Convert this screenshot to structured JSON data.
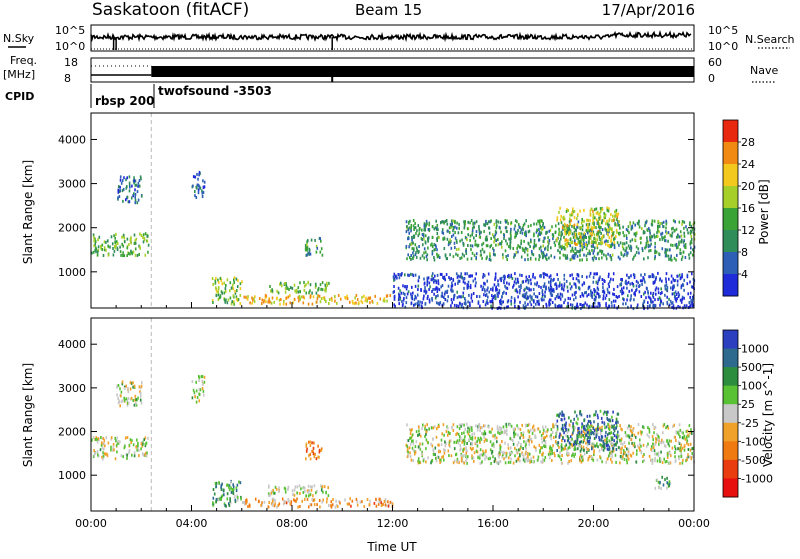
{
  "header": {
    "station": "Saskatoon (fitACF)",
    "beam": "Beam 15",
    "date": "17/Apr/2016"
  },
  "top_panels": {
    "nsky_label": "N.Sky",
    "nsky_ticks": [
      "10^5",
      "10^0"
    ],
    "nsearch_label": "N.Search",
    "nsearch_ticks": [
      "10^5",
      "10^0"
    ],
    "freq_label": "Freq.",
    "freq_unit": "[MHz]",
    "freq_ticks": [
      "18",
      "8"
    ],
    "nave_label": "Nave",
    "nave_ticks": [
      "60",
      "0"
    ],
    "cpid_label": "CPID",
    "cpid_segments": [
      "rbsp 200",
      "twofsound -3503"
    ]
  },
  "colors": {
    "power": [
      "#1f2bd8",
      "#2c5fb5",
      "#2f8d5a",
      "#3aa336",
      "#a6cf2a",
      "#f2c91c",
      "#f08a12",
      "#e8290f"
    ],
    "velocity": [
      "#2b3fbf",
      "#2d6a8e",
      "#2d8d3f",
      "#59c234",
      "#c8c8c8",
      "#f0a12a",
      "#f07a12",
      "#e93d0f",
      "#e8100f"
    ],
    "gap": "#cccccc"
  },
  "chart_data": [
    {
      "type": "heatmap",
      "panel": "power",
      "ylabel": "Slant Range [km]",
      "ylim": [
        180,
        4600
      ],
      "yticks": [
        "1000",
        "2000",
        "3000",
        "4000"
      ],
      "colorbar_label": "Power [dB]",
      "colorbar_ticks": [
        "4",
        "8",
        "12",
        "16",
        "20",
        "24",
        "28"
      ],
      "x": [
        "00:00",
        "04:00",
        "08:00",
        "12:00",
        "16:00",
        "20:00",
        "00:00"
      ],
      "scatter_regions": [
        {
          "t0": 0.0,
          "t1": 2.3,
          "r0": 1400,
          "r1": 1900,
          "level": 0.45
        },
        {
          "t0": 1.0,
          "t1": 2.0,
          "r0": 2600,
          "r1": 3200,
          "level": 0.2
        },
        {
          "t0": 4.0,
          "t1": 4.5,
          "r0": 2700,
          "r1": 3300,
          "level": 0.15
        },
        {
          "t0": 4.8,
          "t1": 6.0,
          "r0": 300,
          "r1": 900,
          "level": 0.5
        },
        {
          "t0": 6.0,
          "t1": 12.0,
          "r0": 300,
          "r1": 500,
          "level": 0.7
        },
        {
          "t0": 7.0,
          "t1": 9.5,
          "r0": 550,
          "r1": 800,
          "level": 0.45
        },
        {
          "t0": 8.5,
          "t1": 9.2,
          "r0": 1400,
          "r1": 1800,
          "level": 0.35
        },
        {
          "t0": 12.5,
          "t1": 24.0,
          "r0": 1300,
          "r1": 2200,
          "level": 0.35
        },
        {
          "t0": 18.5,
          "t1": 21.0,
          "r0": 1600,
          "r1": 2500,
          "level": 0.6
        },
        {
          "t0": 12.0,
          "t1": 24.0,
          "r0": 200,
          "r1": 1000,
          "level": 0.1
        }
      ]
    },
    {
      "type": "heatmap",
      "panel": "velocity",
      "ylabel": "Slant Range [km]",
      "ylim": [
        180,
        4600
      ],
      "yticks": [
        "1000",
        "2000",
        "3000",
        "4000"
      ],
      "colorbar_label": "Velocity [m s^-1]",
      "colorbar_ticks": [
        "1000",
        "500",
        "100",
        "25",
        "-25",
        "-100",
        "-500",
        "-1000"
      ],
      "x": [
        "00:00",
        "04:00",
        "08:00",
        "12:00",
        "16:00",
        "20:00",
        "00:00"
      ],
      "xlabel": "Time UT",
      "scatter_regions": [
        {
          "t0": 0.0,
          "t1": 2.3,
          "r0": 1400,
          "r1": 1900,
          "level": 0.48
        },
        {
          "t0": 1.0,
          "t1": 2.0,
          "r0": 2600,
          "r1": 3200,
          "level": 0.48
        },
        {
          "t0": 4.0,
          "t1": 4.5,
          "r0": 2700,
          "r1": 3300,
          "level": 0.48
        },
        {
          "t0": 4.8,
          "t1": 6.0,
          "r0": 300,
          "r1": 900,
          "level": 0.3
        },
        {
          "t0": 6.0,
          "t1": 12.0,
          "r0": 300,
          "r1": 500,
          "level": 0.62
        },
        {
          "t0": 7.0,
          "t1": 9.5,
          "r0": 550,
          "r1": 800,
          "level": 0.5
        },
        {
          "t0": 8.5,
          "t1": 9.2,
          "r0": 1400,
          "r1": 1800,
          "level": 0.72
        },
        {
          "t0": 12.5,
          "t1": 24.0,
          "r0": 1300,
          "r1": 2200,
          "level": 0.48
        },
        {
          "t0": 18.5,
          "t1": 21.0,
          "r0": 1600,
          "r1": 2500,
          "level": 0.2
        },
        {
          "t0": 22.3,
          "t1": 23.0,
          "r0": 700,
          "r1": 1000,
          "level": 0.35
        }
      ]
    }
  ]
}
